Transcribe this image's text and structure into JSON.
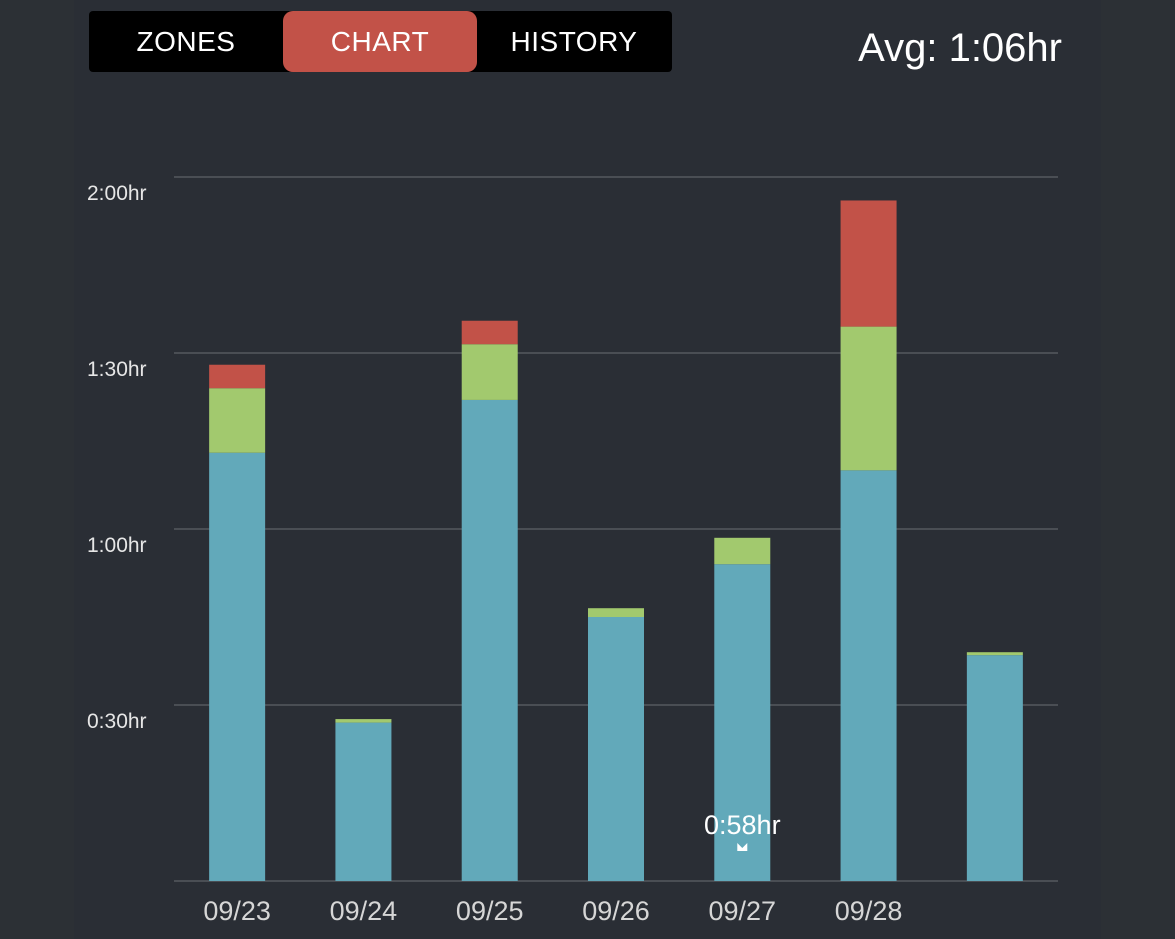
{
  "tabs": {
    "zones": "ZONES",
    "chart": "CHART",
    "history": "HISTORY"
  },
  "header": {
    "avg": "Avg: 1:06hr"
  },
  "tooltip": {
    "text": "0:58hr"
  },
  "colors": {
    "zone1": "#62a9ba",
    "zone2": "#a2c96e",
    "zone3": "#c25248",
    "active_tab": "#c25248"
  },
  "chart_data": {
    "type": "bar",
    "stacked": true,
    "categories": [
      "09/23",
      "09/24",
      "09/25",
      "09/26",
      "09/27",
      "09/28",
      ""
    ],
    "series": [
      {
        "values": [
          73,
          27,
          82,
          45,
          54,
          70,
          38.5
        ]
      },
      {
        "values": [
          11,
          0.6,
          9.5,
          1.5,
          4.5,
          24.5,
          0.5
        ]
      },
      {
        "values": [
          4,
          0,
          4,
          0,
          0,
          21.5,
          0
        ]
      }
    ],
    "ytick_labels": [
      "0:30hr",
      "1:00hr",
      "1:30hr",
      "2:00hr"
    ],
    "yticks_minutes": [
      30,
      60,
      90,
      120
    ],
    "ylim": [
      0,
      120
    ],
    "grid": true,
    "highlight_index": 4
  }
}
